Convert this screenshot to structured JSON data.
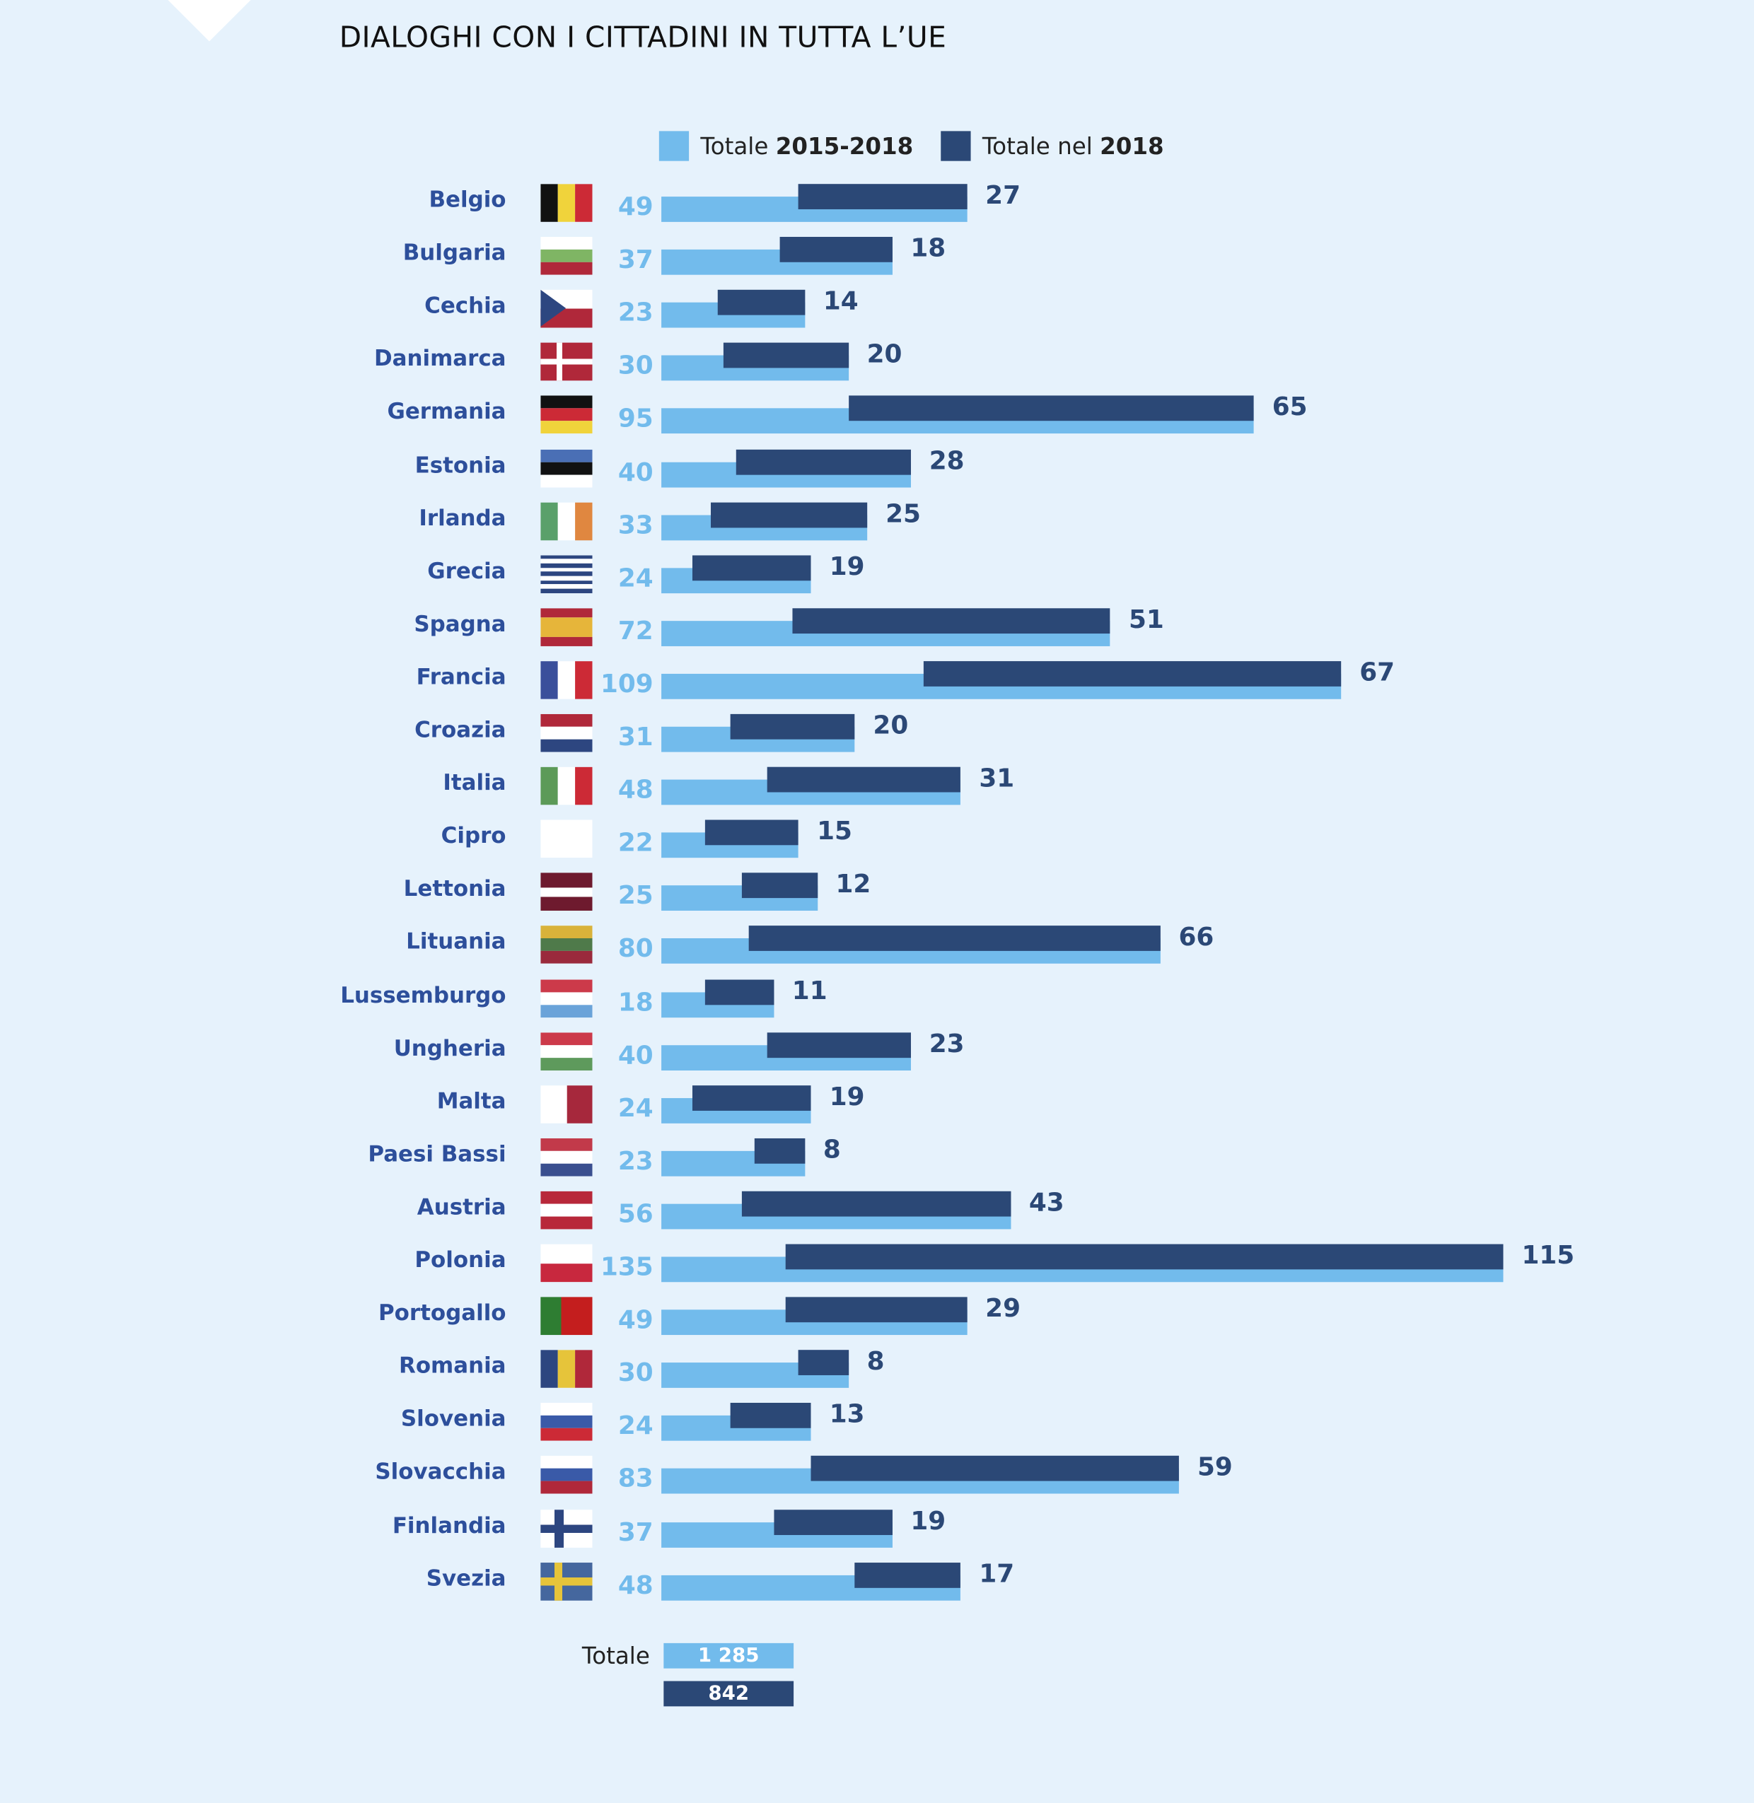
{
  "title": "DIALOGHI CON I CITTADINI IN TUTTA L’UE",
  "colors": {
    "total_2015_2018": "#72bbec",
    "total_2018": "#2b4876",
    "label": "#2d4f9b",
    "background": "#e6f2fc"
  },
  "legend": [
    {
      "prefix": "Totale ",
      "bold": "2015-2018"
    },
    {
      "prefix": "Totale nel ",
      "bold": "2018"
    }
  ],
  "chart_data": {
    "type": "bar",
    "orientation": "horizontal",
    "title": "DIALOGHI CON I CITTADINI IN TUTTA L’UE",
    "categories": [
      "Belgio",
      "Bulgaria",
      "Cechia",
      "Danimarca",
      "Germania",
      "Estonia",
      "Irlanda",
      "Grecia",
      "Spagna",
      "Francia",
      "Croazia",
      "Italia",
      "Cipro",
      "Lettonia",
      "Lituania",
      "Lussemburgo",
      "Ungheria",
      "Malta",
      "Paesi Bassi",
      "Austria",
      "Polonia",
      "Portogallo",
      "Romania",
      "Slovenia",
      "Slovacchia",
      "Finlandia",
      "Svezia"
    ],
    "series": [
      {
        "name": "Totale 2015-2018",
        "values": [
          49,
          37,
          23,
          30,
          95,
          40,
          33,
          24,
          72,
          109,
          31,
          48,
          22,
          25,
          80,
          18,
          40,
          24,
          23,
          56,
          135,
          49,
          30,
          24,
          83,
          37,
          48
        ]
      },
      {
        "name": "Totale nel 2018",
        "values": [
          27,
          18,
          14,
          20,
          65,
          28,
          25,
          19,
          51,
          67,
          20,
          31,
          15,
          12,
          66,
          11,
          23,
          19,
          8,
          43,
          115,
          29,
          8,
          13,
          59,
          19,
          17
        ]
      }
    ],
    "xlim": [
      0,
      135
    ],
    "grid": false,
    "legend_position": "top"
  },
  "flags": [
    {
      "dir": "v",
      "c": [
        "#111111",
        "#f0d33b",
        "#cc2a36"
      ]
    },
    {
      "dir": "h",
      "c": [
        "#ffffff",
        "#7fb564",
        "#b0283a"
      ]
    },
    {
      "dir": "cz",
      "c": [
        "#ffffff",
        "#b0283a",
        "#2d4680"
      ]
    },
    {
      "dir": "dk",
      "c": [
        "#b0283a",
        "#ffffff"
      ]
    },
    {
      "dir": "h",
      "c": [
        "#111111",
        "#cc2a36",
        "#f0d33b"
      ]
    },
    {
      "dir": "h",
      "c": [
        "#4a6fb5",
        "#111111",
        "#ffffff"
      ]
    },
    {
      "dir": "v",
      "c": [
        "#5aa06a",
        "#ffffff",
        "#e08740"
      ]
    },
    {
      "dir": "h",
      "c": [
        "#2d4680",
        "#ffffff",
        "#2d4680",
        "#ffffff",
        "#2d4680",
        "#ffffff",
        "#2d4680",
        "#ffffff",
        "#2d4680"
      ]
    },
    {
      "dir": "h3",
      "c": [
        "#b0283a",
        "#e6b53a",
        "#b0283a"
      ]
    },
    {
      "dir": "v",
      "c": [
        "#3a4f9b",
        "#ffffff",
        "#cc2a36"
      ]
    },
    {
      "dir": "h",
      "c": [
        "#b0283a",
        "#ffffff",
        "#2d4680"
      ]
    },
    {
      "dir": "v",
      "c": [
        "#5c9a58",
        "#ffffff",
        "#cc2a36"
      ]
    },
    {
      "dir": "h",
      "c": [
        "#ffffff"
      ]
    },
    {
      "dir": "h3",
      "c": [
        "#6e1a2e",
        "#ffffff",
        "#6e1a2e"
      ]
    },
    {
      "dir": "h",
      "c": [
        "#d9b23a",
        "#4f7a4a",
        "#9a2a3c"
      ]
    },
    {
      "dir": "h",
      "c": [
        "#cc3a4a",
        "#ffffff",
        "#6aa3d9"
      ]
    },
    {
      "dir": "h",
      "c": [
        "#cc3a4a",
        "#ffffff",
        "#5e9a5c"
      ]
    },
    {
      "dir": "v",
      "c": [
        "#ffffff",
        "#a6283c"
      ]
    },
    {
      "dir": "h",
      "c": [
        "#c23a4a",
        "#ffffff",
        "#3a4f8f"
      ]
    },
    {
      "dir": "h",
      "c": [
        "#b8283a",
        "#ffffff",
        "#b8283a"
      ]
    },
    {
      "dir": "h",
      "c": [
        "#ffffff",
        "#c8283e"
      ]
    },
    {
      "dir": "pt",
      "c": [
        "#2e7d32",
        "#c41e1e"
      ]
    },
    {
      "dir": "v",
      "c": [
        "#2d4680",
        "#e6c43a",
        "#b0283a"
      ]
    },
    {
      "dir": "h",
      "c": [
        "#ffffff",
        "#3a5aa8",
        "#cc2a36"
      ]
    },
    {
      "dir": "h",
      "c": [
        "#ffffff",
        "#3a5aa8",
        "#b0283a"
      ]
    },
    {
      "dir": "fi",
      "c": [
        "#ffffff",
        "#2d4680"
      ]
    },
    {
      "dir": "se",
      "c": [
        "#45679e",
        "#e6c43a"
      ]
    }
  ],
  "totals": {
    "label": "Totale",
    "total_2015_2018": "1 285",
    "total_2018": "842"
  }
}
